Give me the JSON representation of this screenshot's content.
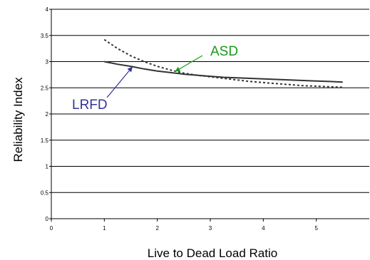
{
  "chart_data": {
    "type": "line",
    "xlabel": "Live to Dead Load Ratio",
    "ylabel": "Reliability Index",
    "xlim": [
      0,
      6
    ],
    "ylim": [
      0,
      4
    ],
    "x_ticks": [
      0,
      1,
      2,
      3,
      4,
      5
    ],
    "y_ticks": [
      0,
      0.5,
      1,
      1.5,
      2,
      2.5,
      3,
      3.5,
      4
    ],
    "grid": "horizontal",
    "series": [
      {
        "name": "ASD",
        "style": "dashed",
        "color": "#333333",
        "x": [
          1,
          1.25,
          1.5,
          1.75,
          2,
          2.25,
          2.5,
          2.75,
          3,
          3.25,
          3.5,
          3.75,
          4,
          4.25,
          4.5,
          4.75,
          5,
          5.25,
          5.5
        ],
        "y": [
          3.42,
          3.25,
          3.11,
          3.0,
          2.91,
          2.84,
          2.78,
          2.74,
          2.71,
          2.68,
          2.65,
          2.62,
          2.6,
          2.58,
          2.56,
          2.54,
          2.53,
          2.52,
          2.51
        ]
      },
      {
        "name": "LRFD",
        "style": "solid",
        "color": "#333333",
        "x": [
          1,
          1.25,
          1.5,
          1.75,
          2,
          2.25,
          2.5,
          2.75,
          3,
          3.25,
          3.5,
          3.75,
          4,
          4.25,
          4.5,
          4.75,
          5,
          5.25,
          5.5
        ],
        "y": [
          3.0,
          2.95,
          2.91,
          2.86,
          2.82,
          2.79,
          2.76,
          2.74,
          2.72,
          2.7,
          2.69,
          2.68,
          2.67,
          2.66,
          2.65,
          2.64,
          2.63,
          2.62,
          2.61
        ]
      }
    ],
    "annotations": [
      {
        "text": "ASD",
        "color": "#1a9a1a",
        "series": "ASD",
        "points_to_x": 2.3
      },
      {
        "text": "LRFD",
        "color": "#333399",
        "series": "LRFD",
        "points_to_x": 1.5
      }
    ]
  }
}
